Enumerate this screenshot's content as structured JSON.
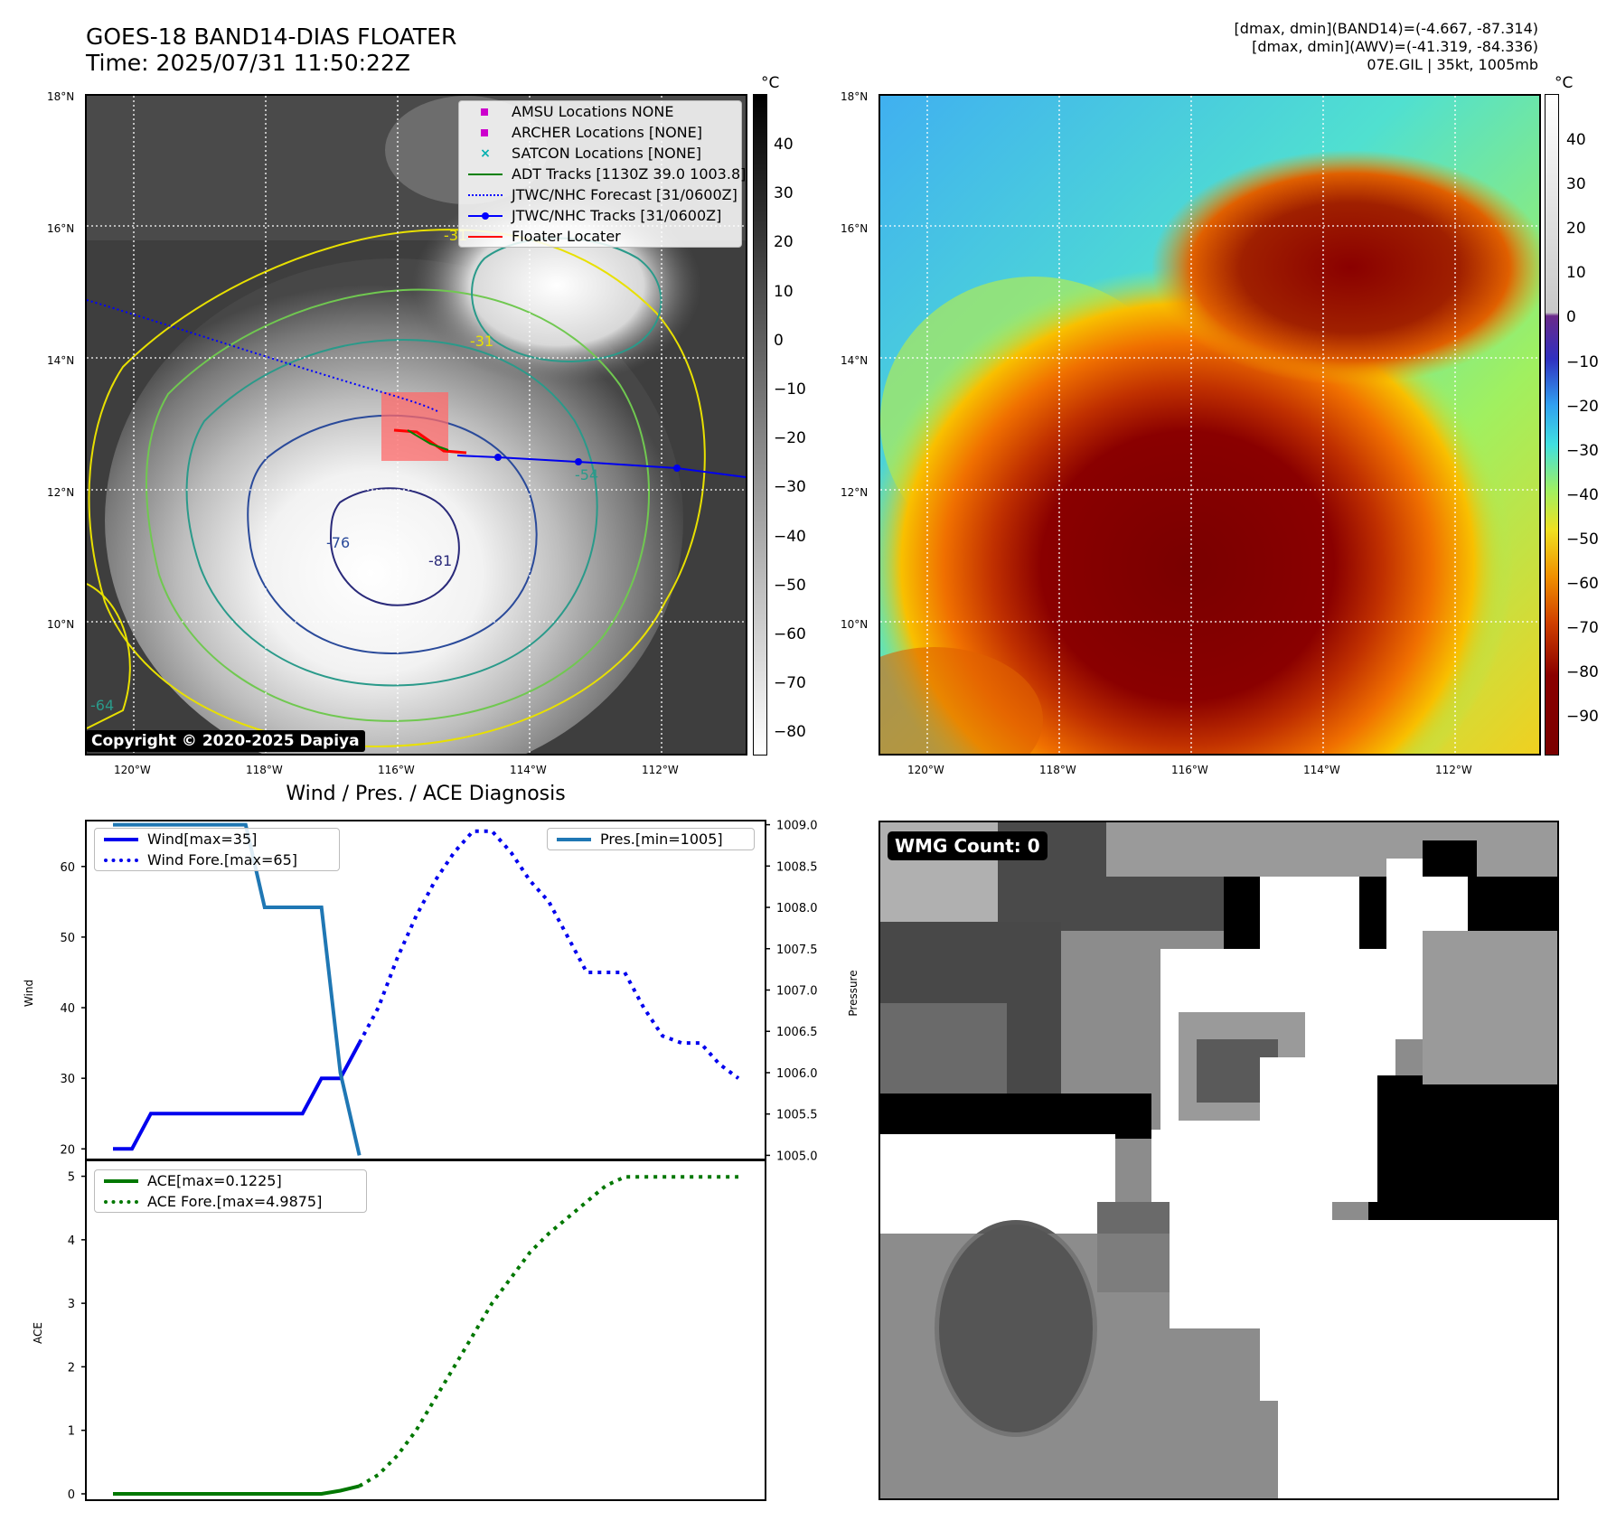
{
  "header": {
    "title_line1": "GOES-18 BAND14-DIAS FLOATER",
    "title_line2": "Time: 2025/07/31 11:50:22Z",
    "right_line1": "[dmax, dmin](BAND14)=(-4.667, -87.314)",
    "right_line2": "[dmax, dmin](AWV)=(-41.319, -84.336)",
    "right_line3": "07E.GIL | 35kt, 1005mb"
  },
  "map_axes": {
    "lat_ticks": [
      "18°N",
      "16°N",
      "14°N",
      "12°N",
      "10°N"
    ],
    "lon_ticks": [
      "120°W",
      "118°W",
      "116°W",
      "114°W",
      "112°W"
    ]
  },
  "colorbar_left": {
    "unit": "°C",
    "ticks": [
      "40",
      "30",
      "20",
      "10",
      "0",
      "−10",
      "−20",
      "−30",
      "−40",
      "−50",
      "−60",
      "−70",
      "−80"
    ],
    "colors": {
      "top": "#000000",
      "bottom": "#ffffff"
    }
  },
  "colorbar_right": {
    "unit": "°C",
    "ticks": [
      "40",
      "30",
      "20",
      "10",
      "0",
      "−10",
      "−20",
      "−30",
      "−40",
      "−50",
      "−60",
      "−70",
      "−80",
      "−90"
    ]
  },
  "legend_top": {
    "items": [
      {
        "label": "AMSU Locations NONE",
        "color": "#cc00cc",
        "symbol": "square"
      },
      {
        "label": "ARCHER Locations [NONE]",
        "color": "#cc00cc",
        "symbol": "square"
      },
      {
        "label": "SATCON Locations [NONE]",
        "color": "#00b0b0",
        "symbol": "x"
      },
      {
        "label": "ADT Tracks [1130Z 39.0 1003.8]",
        "color": "#008000",
        "symbol": "line"
      },
      {
        "label": "JTWC/NHC Forecast [31/0600Z]",
        "color": "#0000ff",
        "symbol": "dotted"
      },
      {
        "label": "JTWC/NHC Tracks [31/0600Z]",
        "color": "#0000ff",
        "symbol": "line-dot"
      },
      {
        "label": "Floater Locater",
        "color": "#ff0000",
        "symbol": "line"
      }
    ]
  },
  "contour_labels": [
    "-31",
    "-54",
    "-76",
    "-81",
    "-31",
    "-64"
  ],
  "copyright": "Copyright © 2020-2025 Dapiya",
  "diagnosis": {
    "title": "Wind / Pres. / ACE Diagnosis",
    "wind_ylabel": "Wind",
    "pres_ylabel": "Pressure",
    "ace_ylabel": "ACE",
    "wind_legend": [
      "Wind[max=35]",
      "Wind Fore.[max=65]"
    ],
    "pres_legend": [
      "Pres.[min=1005]"
    ],
    "ace_legend": [
      "ACE[max=0.1225]",
      "ACE Fore.[max=4.9875]"
    ]
  },
  "wmg": {
    "label": "WMG Count: 0"
  },
  "chart_data": [
    {
      "type": "line",
      "title": "Wind / Pres. / ACE Diagnosis",
      "ylabel": "Wind",
      "ylim": [
        18.5,
        66.5
      ],
      "yticks": [
        20,
        30,
        40,
        50,
        60
      ],
      "series": [
        {
          "name": "Wind[max=35]",
          "style": "solid",
          "color": "#0000ee",
          "x": [
            0,
            1,
            2,
            3,
            4,
            5,
            6,
            7,
            8,
            9,
            10,
            11,
            12,
            13
          ],
          "values": [
            20,
            20,
            25,
            25,
            25,
            25,
            25,
            25,
            25,
            25,
            25,
            30,
            30,
            35
          ]
        },
        {
          "name": "Wind Fore.[max=65]",
          "style": "dotted",
          "color": "#0000ee",
          "x": [
            13,
            14,
            15,
            16,
            17,
            18,
            19,
            20,
            21,
            22,
            23,
            24,
            25,
            26,
            27,
            28,
            29,
            30,
            31,
            32,
            33
          ],
          "values": [
            35,
            40,
            47,
            53,
            58,
            62,
            65,
            65,
            62,
            58,
            55,
            50,
            45,
            45,
            45,
            40,
            36,
            35,
            35,
            32,
            30
          ]
        }
      ]
    },
    {
      "type": "line",
      "ylabel": "Pressure",
      "ylim": [
        1004.95,
        1009.05
      ],
      "yticks": [
        1005.0,
        1005.5,
        1006.0,
        1006.5,
        1007.0,
        1007.5,
        1008.0,
        1008.5,
        1009.0
      ],
      "series": [
        {
          "name": "Pres.[min=1005]",
          "style": "solid",
          "color": "#1f77b4",
          "x": [
            0,
            1,
            2,
            3,
            4,
            5,
            6,
            7,
            8,
            9,
            10,
            11,
            12,
            13
          ],
          "values": [
            1009,
            1009,
            1009,
            1009,
            1009,
            1009,
            1009,
            1009,
            1008,
            1008,
            1008,
            1008,
            1006,
            1005
          ]
        }
      ]
    },
    {
      "type": "line",
      "ylabel": "ACE",
      "ylim": [
        -0.1,
        5.25
      ],
      "yticks": [
        0,
        1,
        2,
        3,
        4,
        5
      ],
      "series": [
        {
          "name": "ACE[max=0.1225]",
          "style": "solid",
          "color": "#007700",
          "x": [
            0,
            1,
            2,
            3,
            4,
            5,
            6,
            7,
            8,
            9,
            10,
            11,
            12,
            13
          ],
          "values": [
            0,
            0,
            0,
            0,
            0,
            0,
            0,
            0,
            0,
            0,
            0,
            0,
            0.05,
            0.1225
          ]
        },
        {
          "name": "ACE Fore.[max=4.9875]",
          "style": "dotted",
          "color": "#007700",
          "x": [
            13,
            14,
            15,
            16,
            17,
            18,
            19,
            20,
            21,
            22,
            23,
            24,
            25,
            26,
            27,
            28,
            29,
            30,
            31,
            32,
            33
          ],
          "values": [
            0.1225,
            0.3,
            0.6,
            1.0,
            1.5,
            2.0,
            2.5,
            3.0,
            3.4,
            3.8,
            4.1,
            4.35,
            4.6,
            4.85,
            4.99,
            4.99,
            4.99,
            4.99,
            4.99,
            4.99,
            4.99
          ]
        }
      ]
    }
  ]
}
